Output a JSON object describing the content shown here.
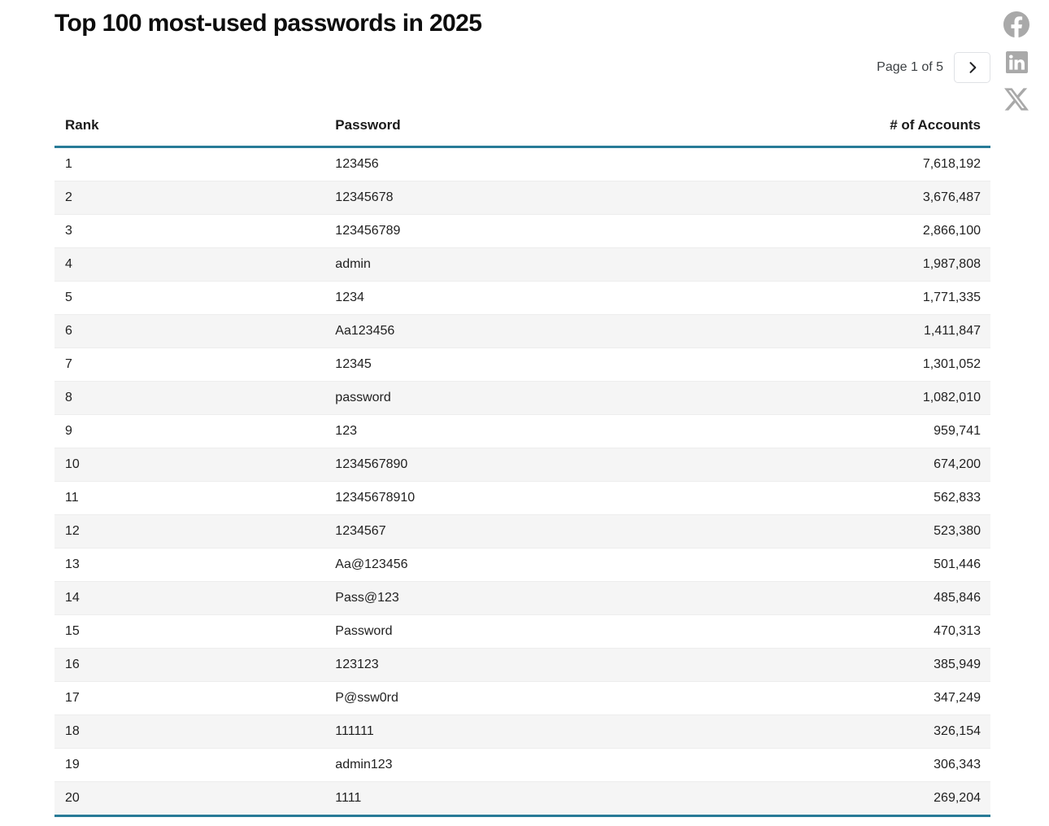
{
  "page": {
    "title": "Top 100 most-used passwords in 2025"
  },
  "pagination": {
    "label": "Page 1 of 5",
    "next_icon": "chevron-right-icon"
  },
  "social": {
    "icons": [
      "facebook-icon",
      "linkedin-icon",
      "x-icon"
    ]
  },
  "table": {
    "columns": [
      "Rank",
      "Password",
      "# of Accounts"
    ],
    "rows": [
      {
        "rank": "1",
        "password": "123456",
        "accounts": "7,618,192"
      },
      {
        "rank": "2",
        "password": "12345678",
        "accounts": "3,676,487"
      },
      {
        "rank": "3",
        "password": "123456789",
        "accounts": "2,866,100"
      },
      {
        "rank": "4",
        "password": "admin",
        "accounts": "1,987,808"
      },
      {
        "rank": "5",
        "password": "1234",
        "accounts": "1,771,335"
      },
      {
        "rank": "6",
        "password": "Aa123456",
        "accounts": "1,411,847"
      },
      {
        "rank": "7",
        "password": "12345",
        "accounts": "1,301,052"
      },
      {
        "rank": "8",
        "password": "password",
        "accounts": "1,082,010"
      },
      {
        "rank": "9",
        "password": "123",
        "accounts": "959,741"
      },
      {
        "rank": "10",
        "password": "1234567890",
        "accounts": "674,200"
      },
      {
        "rank": "11",
        "password": "12345678910",
        "accounts": "562,833"
      },
      {
        "rank": "12",
        "password": "1234567",
        "accounts": "523,380"
      },
      {
        "rank": "13",
        "password": "Aa@123456",
        "accounts": "501,446"
      },
      {
        "rank": "14",
        "password": "Pass@123",
        "accounts": "485,846"
      },
      {
        "rank": "15",
        "password": "Password",
        "accounts": "470,313"
      },
      {
        "rank": "16",
        "password": "123123",
        "accounts": "385,949"
      },
      {
        "rank": "17",
        "password": "P@ssw0rd",
        "accounts": "347,249"
      },
      {
        "rank": "18",
        "password": "111111",
        "accounts": "326,154"
      },
      {
        "rank": "19",
        "password": "admin123",
        "accounts": "306,343"
      },
      {
        "rank": "20",
        "password": "1111",
        "accounts": "269,204"
      }
    ]
  },
  "colors": {
    "accent_teal": "#287b97",
    "row_alt_bg": "#f5f5f5",
    "icon_gray": "#a9a9a9"
  }
}
